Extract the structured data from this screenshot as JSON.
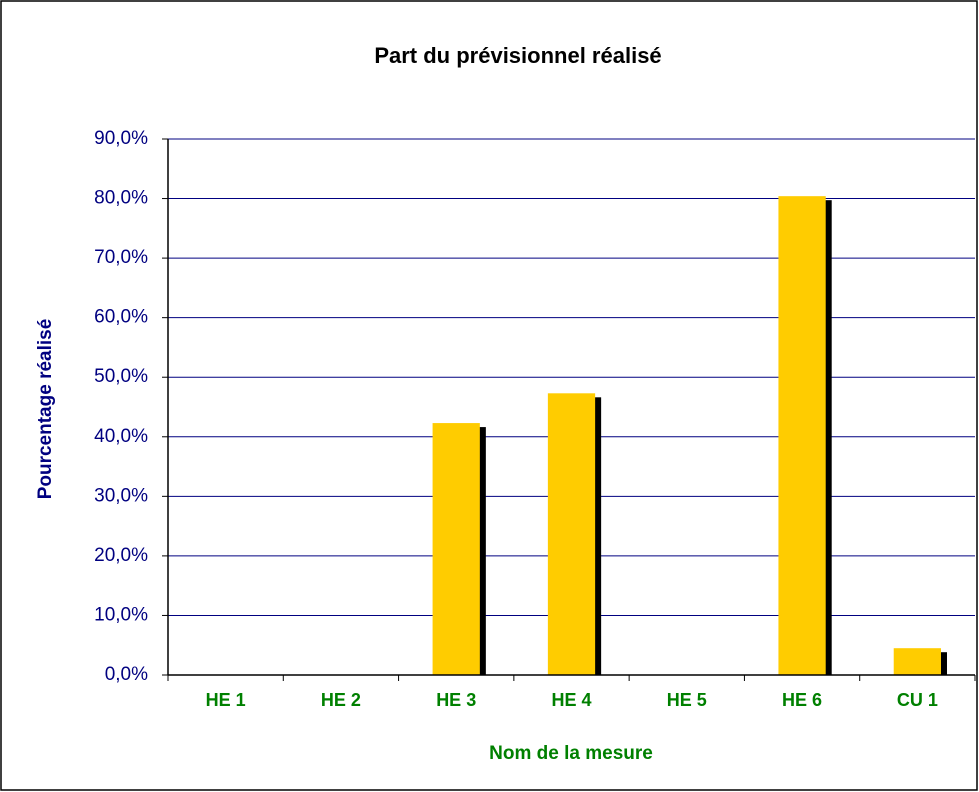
{
  "chart_data": {
    "type": "bar",
    "title": "Part du prévisionnel réalisé",
    "x_label": "Nom de la mesure",
    "y_label": "Pourcentage réalisé",
    "categories": [
      "HE 1",
      "HE 2",
      "HE 3",
      "HE 4",
      "HE 5",
      "HE 6",
      "CU 1"
    ],
    "values": [
      0,
      0,
      42.3,
      47.3,
      0,
      80.4,
      4.5
    ],
    "color": "#FFCC00",
    "shadow_color": "#000000",
    "ylim": [
      0,
      90
    ],
    "yticks": [
      {
        "value": 0,
        "label": "0,0%"
      },
      {
        "value": 10,
        "label": "10,0%"
      },
      {
        "value": 20,
        "label": "20,0%"
      },
      {
        "value": 30,
        "label": "30,0%"
      },
      {
        "value": 40,
        "label": "40,0%"
      },
      {
        "value": 50,
        "label": "50,0%"
      },
      {
        "value": 60,
        "label": "60,0%"
      },
      {
        "value": 70,
        "label": "70,0%"
      },
      {
        "value": 80,
        "label": "80,0%"
      },
      {
        "value": 90,
        "label": "90,0%"
      }
    ],
    "grid": true
  }
}
